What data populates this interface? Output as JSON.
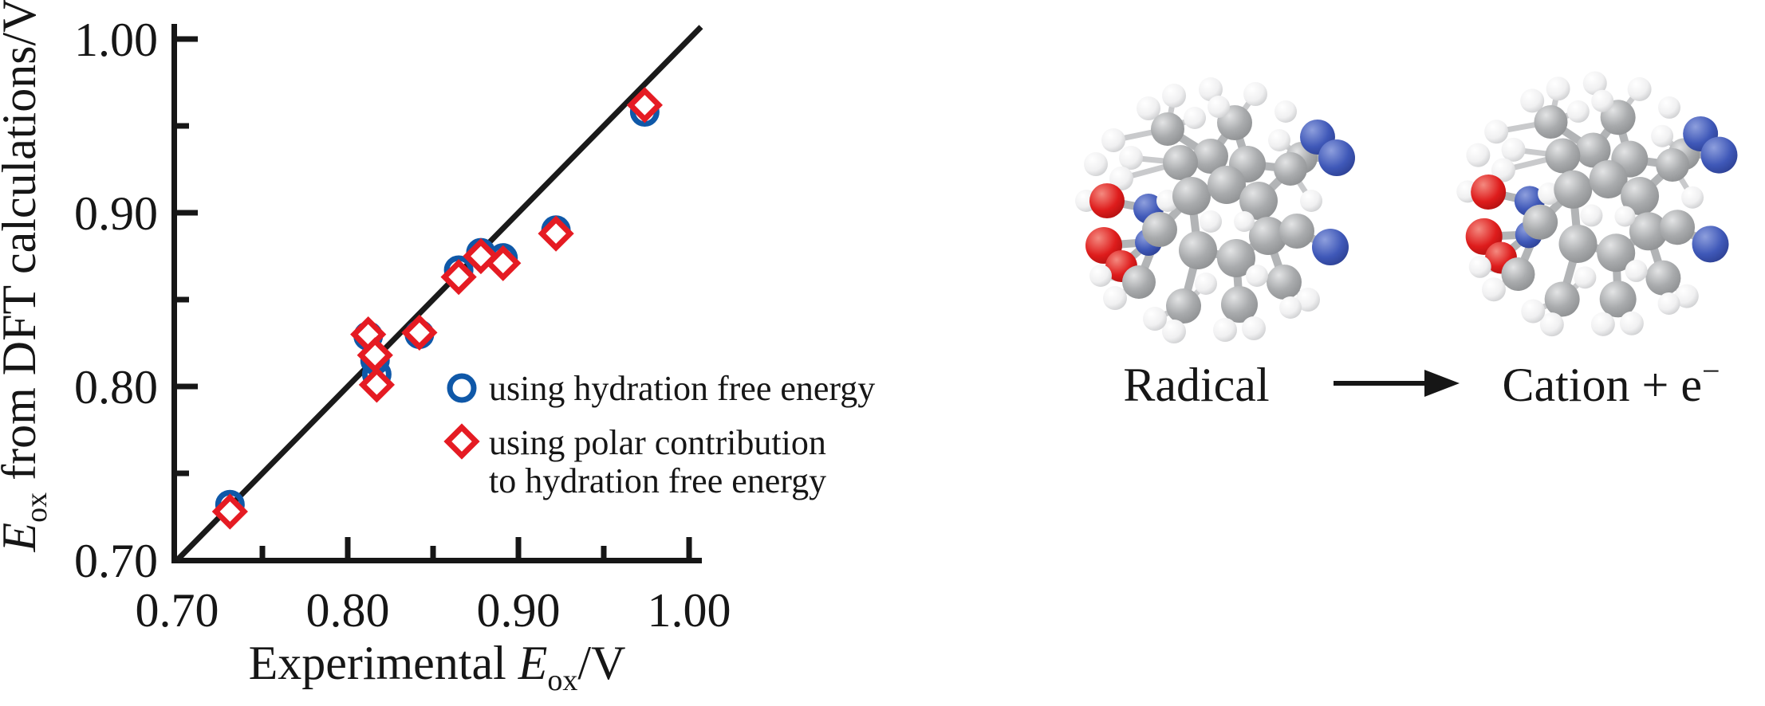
{
  "page": {
    "background": "#ffffff",
    "black": "#161616"
  },
  "chart_data": {
    "type": "scatter",
    "title": "",
    "xlabel": "Experimental Eox/V",
    "ylabel": "Eox from DFT calculations/V",
    "xlim": [
      0.7,
      1.0
    ],
    "ylim": [
      0.7,
      1.0
    ],
    "grid": false,
    "x_ticks": {
      "values": [
        0.7,
        0.8,
        0.9,
        1.0
      ],
      "labels": [
        "0.70",
        "0.80",
        "0.90",
        "1.00"
      ]
    },
    "y_ticks": {
      "values": [
        0.7,
        0.8,
        0.9,
        1.0
      ],
      "labels": [
        "0.70",
        "0.80",
        "0.90",
        "1.00"
      ]
    },
    "minor_ticks": [
      0.75,
      0.85,
      0.95
    ],
    "identity_line": {
      "type": "y=x",
      "from": 0.7,
      "to": 1.007,
      "color": "#1a1a1a"
    },
    "legend_position": "inside-right-middle",
    "series": [
      {
        "name": "using hydration free energy",
        "marker": "circle",
        "color": "#0f58a8",
        "points": [
          [
            0.731,
            0.732
          ],
          [
            0.812,
            0.829
          ],
          [
            0.816,
            0.815
          ],
          [
            0.817,
            0.807
          ],
          [
            0.842,
            0.83
          ],
          [
            0.865,
            0.867
          ],
          [
            0.878,
            0.877
          ],
          [
            0.891,
            0.874
          ],
          [
            0.922,
            0.89
          ],
          [
            0.974,
            0.958
          ]
        ]
      },
      {
        "name": "using polar contribution to hydration free energy",
        "marker": "diamond",
        "color": "#e51b23",
        "points": [
          [
            0.731,
            0.728
          ],
          [
            0.812,
            0.83
          ],
          [
            0.816,
            0.818
          ],
          [
            0.817,
            0.801
          ],
          [
            0.842,
            0.831
          ],
          [
            0.865,
            0.863
          ],
          [
            0.878,
            0.875
          ],
          [
            0.891,
            0.871
          ],
          [
            0.922,
            0.888
          ],
          [
            0.974,
            0.962
          ]
        ]
      }
    ]
  },
  "axis_labels": {
    "x": {
      "prefix": "Experimental ",
      "sym": "E",
      "sub": "ox",
      "suffix": "/V"
    },
    "y": {
      "sym": "E",
      "sub": "ox",
      "suffix": " from DFT calculations/V"
    }
  },
  "legend": {
    "line1": "using hydration free energy",
    "line2": "using polar contribution",
    "line3": "to hydration free energy"
  },
  "reaction": {
    "reactant": "Radical",
    "arrow": "→",
    "product": "Cation + e",
    "product_sup": "−"
  },
  "molecule": {
    "atom_colors": {
      "C": "#a9abad",
      "H": "#f1f1f2",
      "N": "#3f58b8",
      "O": "#de1c1c"
    },
    "atoms": [
      [
        118,
        80,
        15,
        "H"
      ],
      [
        150,
        64,
        15,
        "H"
      ],
      [
        196,
        56,
        15,
        "H"
      ],
      [
        252,
        62,
        15,
        "H"
      ],
      [
        290,
        84,
        14,
        "H"
      ],
      [
        74,
        120,
        15,
        "H"
      ],
      [
        52,
        150,
        15,
        "H"
      ],
      [
        40,
        196,
        14,
        "H"
      ],
      [
        142,
        106,
        21,
        "C"
      ],
      [
        226,
        98,
        22,
        "C"
      ],
      [
        176,
        92,
        14,
        "H"
      ],
      [
        206,
        78,
        14,
        "H"
      ],
      [
        282,
        120,
        14,
        "H"
      ],
      [
        310,
        142,
        20,
        "C"
      ],
      [
        196,
        140,
        22,
        "C"
      ],
      [
        158,
        148,
        22,
        "C"
      ],
      [
        242,
        150,
        23,
        "C"
      ],
      [
        96,
        142,
        15,
        "H"
      ],
      [
        84,
        168,
        15,
        "H"
      ],
      [
        66,
        196,
        22,
        "O"
      ],
      [
        118,
        206,
        19,
        "N"
      ],
      [
        142,
        196,
        14,
        "H"
      ],
      [
        62,
        252,
        23,
        "O"
      ],
      [
        84,
        278,
        20,
        "O"
      ],
      [
        118,
        248,
        17,
        "N"
      ],
      [
        172,
        190,
        24,
        "C"
      ],
      [
        216,
        176,
        24,
        "C"
      ],
      [
        256,
        196,
        24,
        "C"
      ],
      [
        268,
        240,
        24,
        "C"
      ],
      [
        228,
        268,
        24,
        "C"
      ],
      [
        180,
        258,
        24,
        "C"
      ],
      [
        132,
        232,
        22,
        "C"
      ],
      [
        196,
        222,
        14,
        "H"
      ],
      [
        238,
        222,
        13,
        "H"
      ],
      [
        330,
        116,
        22,
        "N"
      ],
      [
        354,
        142,
        23,
        "N"
      ],
      [
        296,
        156,
        21,
        "C"
      ],
      [
        304,
        234,
        22,
        "C"
      ],
      [
        346,
        254,
        23,
        "N"
      ],
      [
        322,
        196,
        14,
        "H"
      ],
      [
        288,
        298,
        22,
        "C"
      ],
      [
        232,
        326,
        23,
        "C"
      ],
      [
        162,
        328,
        22,
        "C"
      ],
      [
        106,
        298,
        21,
        "C"
      ],
      [
        318,
        320,
        15,
        "H"
      ],
      [
        296,
        330,
        14,
        "H"
      ],
      [
        250,
        356,
        15,
        "H"
      ],
      [
        214,
        358,
        15,
        "H"
      ],
      [
        150,
        360,
        15,
        "H"
      ],
      [
        126,
        344,
        15,
        "H"
      ],
      [
        76,
        318,
        15,
        "H"
      ],
      [
        58,
        290,
        14,
        "H"
      ],
      [
        190,
        300,
        14,
        "H"
      ],
      [
        254,
        290,
        14,
        "H"
      ]
    ],
    "bonds": [
      [
        8,
        0
      ],
      [
        8,
        1
      ],
      [
        8,
        10
      ],
      [
        8,
        14
      ],
      [
        5,
        8
      ],
      [
        9,
        2
      ],
      [
        9,
        11
      ],
      [
        9,
        3
      ],
      [
        9,
        14
      ],
      [
        9,
        16
      ],
      [
        13,
        12
      ],
      [
        13,
        35
      ],
      [
        13,
        36
      ],
      [
        14,
        15
      ],
      [
        14,
        26
      ],
      [
        15,
        25
      ],
      [
        15,
        17
      ],
      [
        15,
        18
      ],
      [
        16,
        26
      ],
      [
        16,
        36
      ],
      [
        19,
        20
      ],
      [
        20,
        21
      ],
      [
        20,
        25
      ],
      [
        7,
        19
      ],
      [
        22,
        24
      ],
      [
        23,
        24
      ],
      [
        24,
        31
      ],
      [
        25,
        26
      ],
      [
        26,
        27
      ],
      [
        27,
        28
      ],
      [
        28,
        29
      ],
      [
        29,
        30
      ],
      [
        30,
        25
      ],
      [
        25,
        31
      ],
      [
        27,
        36
      ],
      [
        36,
        34
      ],
      [
        39,
        36
      ],
      [
        28,
        37
      ],
      [
        37,
        38
      ],
      [
        28,
        40
      ],
      [
        29,
        41
      ],
      [
        30,
        42
      ],
      [
        31,
        43
      ],
      [
        40,
        44
      ],
      [
        40,
        45
      ],
      [
        41,
        46
      ],
      [
        41,
        47
      ],
      [
        42,
        48
      ],
      [
        42,
        49
      ],
      [
        43,
        50
      ],
      [
        43,
        51
      ],
      [
        42,
        52
      ],
      [
        29,
        53
      ]
    ]
  }
}
